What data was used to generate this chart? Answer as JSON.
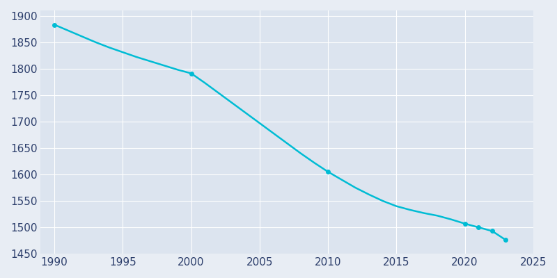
{
  "years": [
    1990,
    1991,
    1992,
    1993,
    1994,
    1995,
    1996,
    1997,
    1998,
    1999,
    2000,
    2001,
    2002,
    2003,
    2004,
    2005,
    2006,
    2007,
    2008,
    2009,
    2010,
    2011,
    2012,
    2013,
    2014,
    2015,
    2016,
    2017,
    2018,
    2019,
    2020,
    2021,
    2022,
    2023
  ],
  "population": [
    1883,
    1872,
    1861,
    1850,
    1840,
    1831,
    1822,
    1814,
    1806,
    1798,
    1791,
    1773,
    1754,
    1735,
    1716,
    1697,
    1678,
    1659,
    1640,
    1622,
    1605,
    1590,
    1575,
    1562,
    1550,
    1540,
    1533,
    1527,
    1522,
    1515,
    1507,
    1500,
    1493,
    1476
  ],
  "line_color": "#00bcd4",
  "marker_years": [
    1990,
    2000,
    2010,
    2020,
    2021,
    2022,
    2023
  ],
  "marker_values": [
    1883,
    1791,
    1605,
    1507,
    1500,
    1493,
    1476
  ],
  "bg_color": "#e8edf4",
  "plot_bg_color": "#dce4ef",
  "grid_color": "#ffffff",
  "tick_color": "#2c3e6b",
  "xlim": [
    1989,
    2025
  ],
  "ylim": [
    1450,
    1910
  ],
  "xticks": [
    1990,
    1995,
    2000,
    2005,
    2010,
    2015,
    2020,
    2025
  ],
  "yticks": [
    1450,
    1500,
    1550,
    1600,
    1650,
    1700,
    1750,
    1800,
    1850,
    1900
  ],
  "figsize": [
    8,
    4
  ],
  "dpi": 100
}
